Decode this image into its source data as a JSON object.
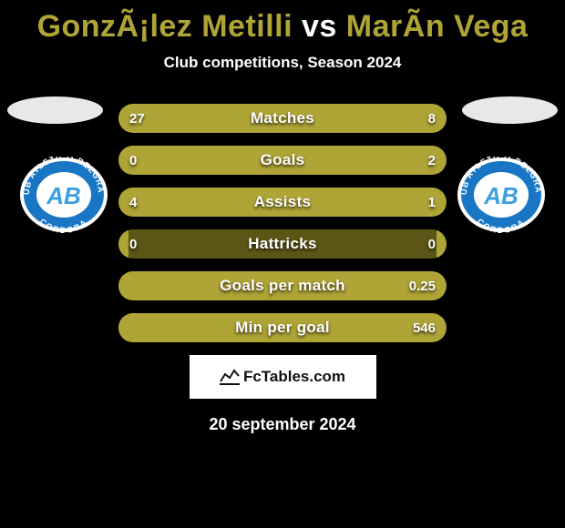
{
  "title": {
    "player1": "GonzÃ¡lez Metilli",
    "vs": " vs ",
    "player2": "MarÃ­n Vega",
    "color1": "#afa436",
    "color2": "#afa436"
  },
  "subtitle": "Club competitions, Season 2024",
  "club": {
    "name": "Club Atlético Belgrano",
    "ring_color": "#1976c4",
    "initials": "AB",
    "initials_color": "#3aa0e0"
  },
  "bars": {
    "track_color": "#5b5615",
    "fill_color": "#afa436",
    "rows": [
      {
        "label": "Matches",
        "left_val": "27",
        "right_val": "8",
        "left_pct": 77,
        "right_pct": 23
      },
      {
        "label": "Goals",
        "left_val": "0",
        "right_val": "2",
        "left_pct": 3,
        "right_pct": 97
      },
      {
        "label": "Assists",
        "left_val": "4",
        "right_val": "1",
        "left_pct": 80,
        "right_pct": 20
      },
      {
        "label": "Hattricks",
        "left_val": "0",
        "right_val": "0",
        "left_pct": 3,
        "right_pct": 3
      },
      {
        "label": "Goals per match",
        "left_val": "",
        "right_val": "0.25",
        "left_pct": 3,
        "right_pct": 97
      },
      {
        "label": "Min per goal",
        "left_val": "",
        "right_val": "546",
        "left_pct": 3,
        "right_pct": 97
      }
    ]
  },
  "attribution": "FcTables.com",
  "date": "20 september 2024"
}
